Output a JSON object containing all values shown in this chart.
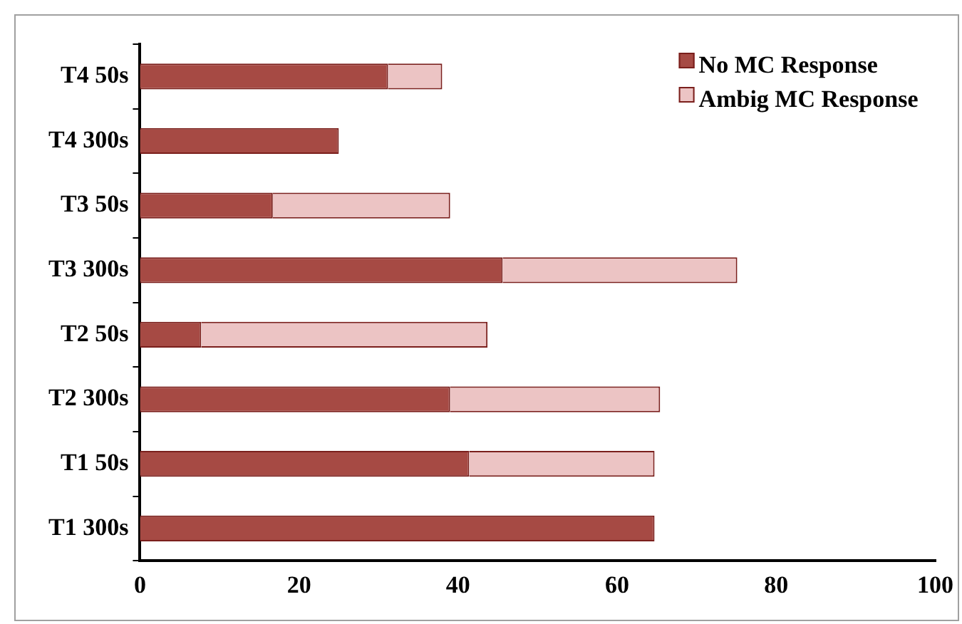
{
  "chart_data": {
    "type": "bar",
    "orientation": "horizontal",
    "stacked": true,
    "categories": [
      "T4 50s",
      "T4 300s",
      "T3 50s",
      "T3 300s",
      "T2 50s",
      "T2 300s",
      "T1 50s",
      "T1 300s"
    ],
    "series": [
      {
        "name": "No MC Response",
        "color": "#a64a44",
        "values": [
          31.2,
          25,
          16.7,
          45.6,
          7.7,
          39,
          41.4,
          64.7
        ]
      },
      {
        "name": "Ambig MC Response",
        "color": "#ecc4c4",
        "values": [
          6.8,
          0,
          22.3,
          29.5,
          36,
          26.4,
          23.3,
          0
        ]
      }
    ],
    "xlim": [
      0,
      100
    ],
    "xticks": [
      0,
      20,
      40,
      60,
      80,
      100
    ],
    "grid": false,
    "legend": "top right"
  }
}
